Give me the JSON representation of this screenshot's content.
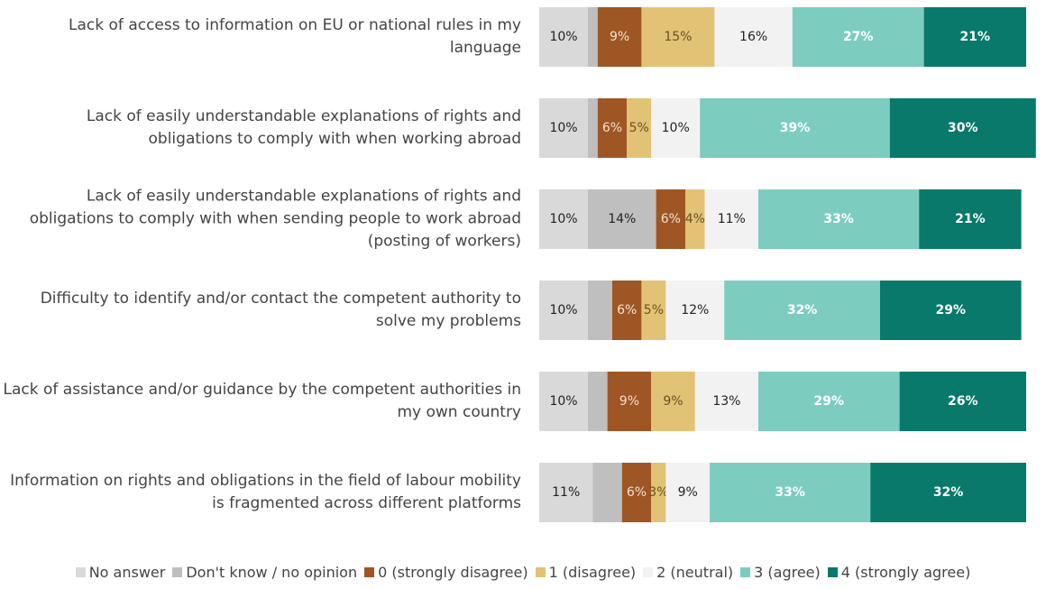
{
  "chart_data": {
    "type": "stacked-bar-horizontal",
    "categories": [
      "Lack of access to information on EU or national rules in my language",
      "Lack of easily understandable explanations of rights and obligations to comply with when working abroad",
      "Lack of easily understandable explanations of rights and obligations to comply with when sending people to work abroad (posting of workers)",
      "Difficulty to identify and/or contact the competent authority to solve my problems",
      "Lack of assistance and/or guidance by the competent authorities in my own country",
      "Information on rights and obligations in the field of labour mobility is fragmented across different platforms"
    ],
    "xlim": [
      0,
      100
    ],
    "series": [
      {
        "name": "No answer",
        "color": "#d9d9d9",
        "label_color": "#222222",
        "values": [
          10,
          10,
          10,
          10,
          10,
          11
        ],
        "value_labels": [
          "10%",
          "10%",
          "10%",
          "10%",
          "10%",
          "11%"
        ]
      },
      {
        "name": "Don't know / no opinion",
        "color": "#bfbfbf",
        "label_color": "#222222",
        "values": [
          2,
          2,
          14,
          5,
          4,
          6
        ],
        "value_labels": [
          null,
          null,
          "14%",
          null,
          null,
          null
        ]
      },
      {
        "name": "0 (strongly disagree)",
        "color": "#9e5624",
        "label_color": "#f3e3d0",
        "values": [
          9,
          6,
          6,
          6,
          9,
          6
        ],
        "value_labels": [
          "9%",
          "6%",
          "6%",
          "6%",
          "9%",
          "6%"
        ]
      },
      {
        "name": "1 (disagree)",
        "color": "#e2c275",
        "label_color": "#6b5020",
        "values": [
          15,
          5,
          4,
          5,
          9,
          3
        ],
        "value_labels": [
          "15%",
          "5%",
          "4%",
          "5%",
          "9%",
          "3%"
        ]
      },
      {
        "name": "2 (neutral)",
        "color": "#f2f2f2",
        "label_color": "#222222",
        "values": [
          16,
          10,
          11,
          12,
          13,
          9
        ],
        "value_labels": [
          "16%",
          "10%",
          "11%",
          "12%",
          "13%",
          "9%"
        ]
      },
      {
        "name": "3 (agree)",
        "color": "#7ccdbf",
        "label_color": "#ffffff",
        "values": [
          27,
          39,
          33,
          32,
          29,
          33
        ],
        "value_labels": [
          "27%",
          "39%",
          "33%",
          "32%",
          "29%",
          "33%"
        ]
      },
      {
        "name": "4 (strongly agree)",
        "color": "#08796a",
        "label_color": "#ffffff",
        "values": [
          21,
          30,
          21,
          29,
          26,
          32
        ],
        "value_labels": [
          "21%",
          "30%",
          "21%",
          "29%",
          "26%",
          "32%"
        ]
      }
    ],
    "legend": "bottom"
  }
}
